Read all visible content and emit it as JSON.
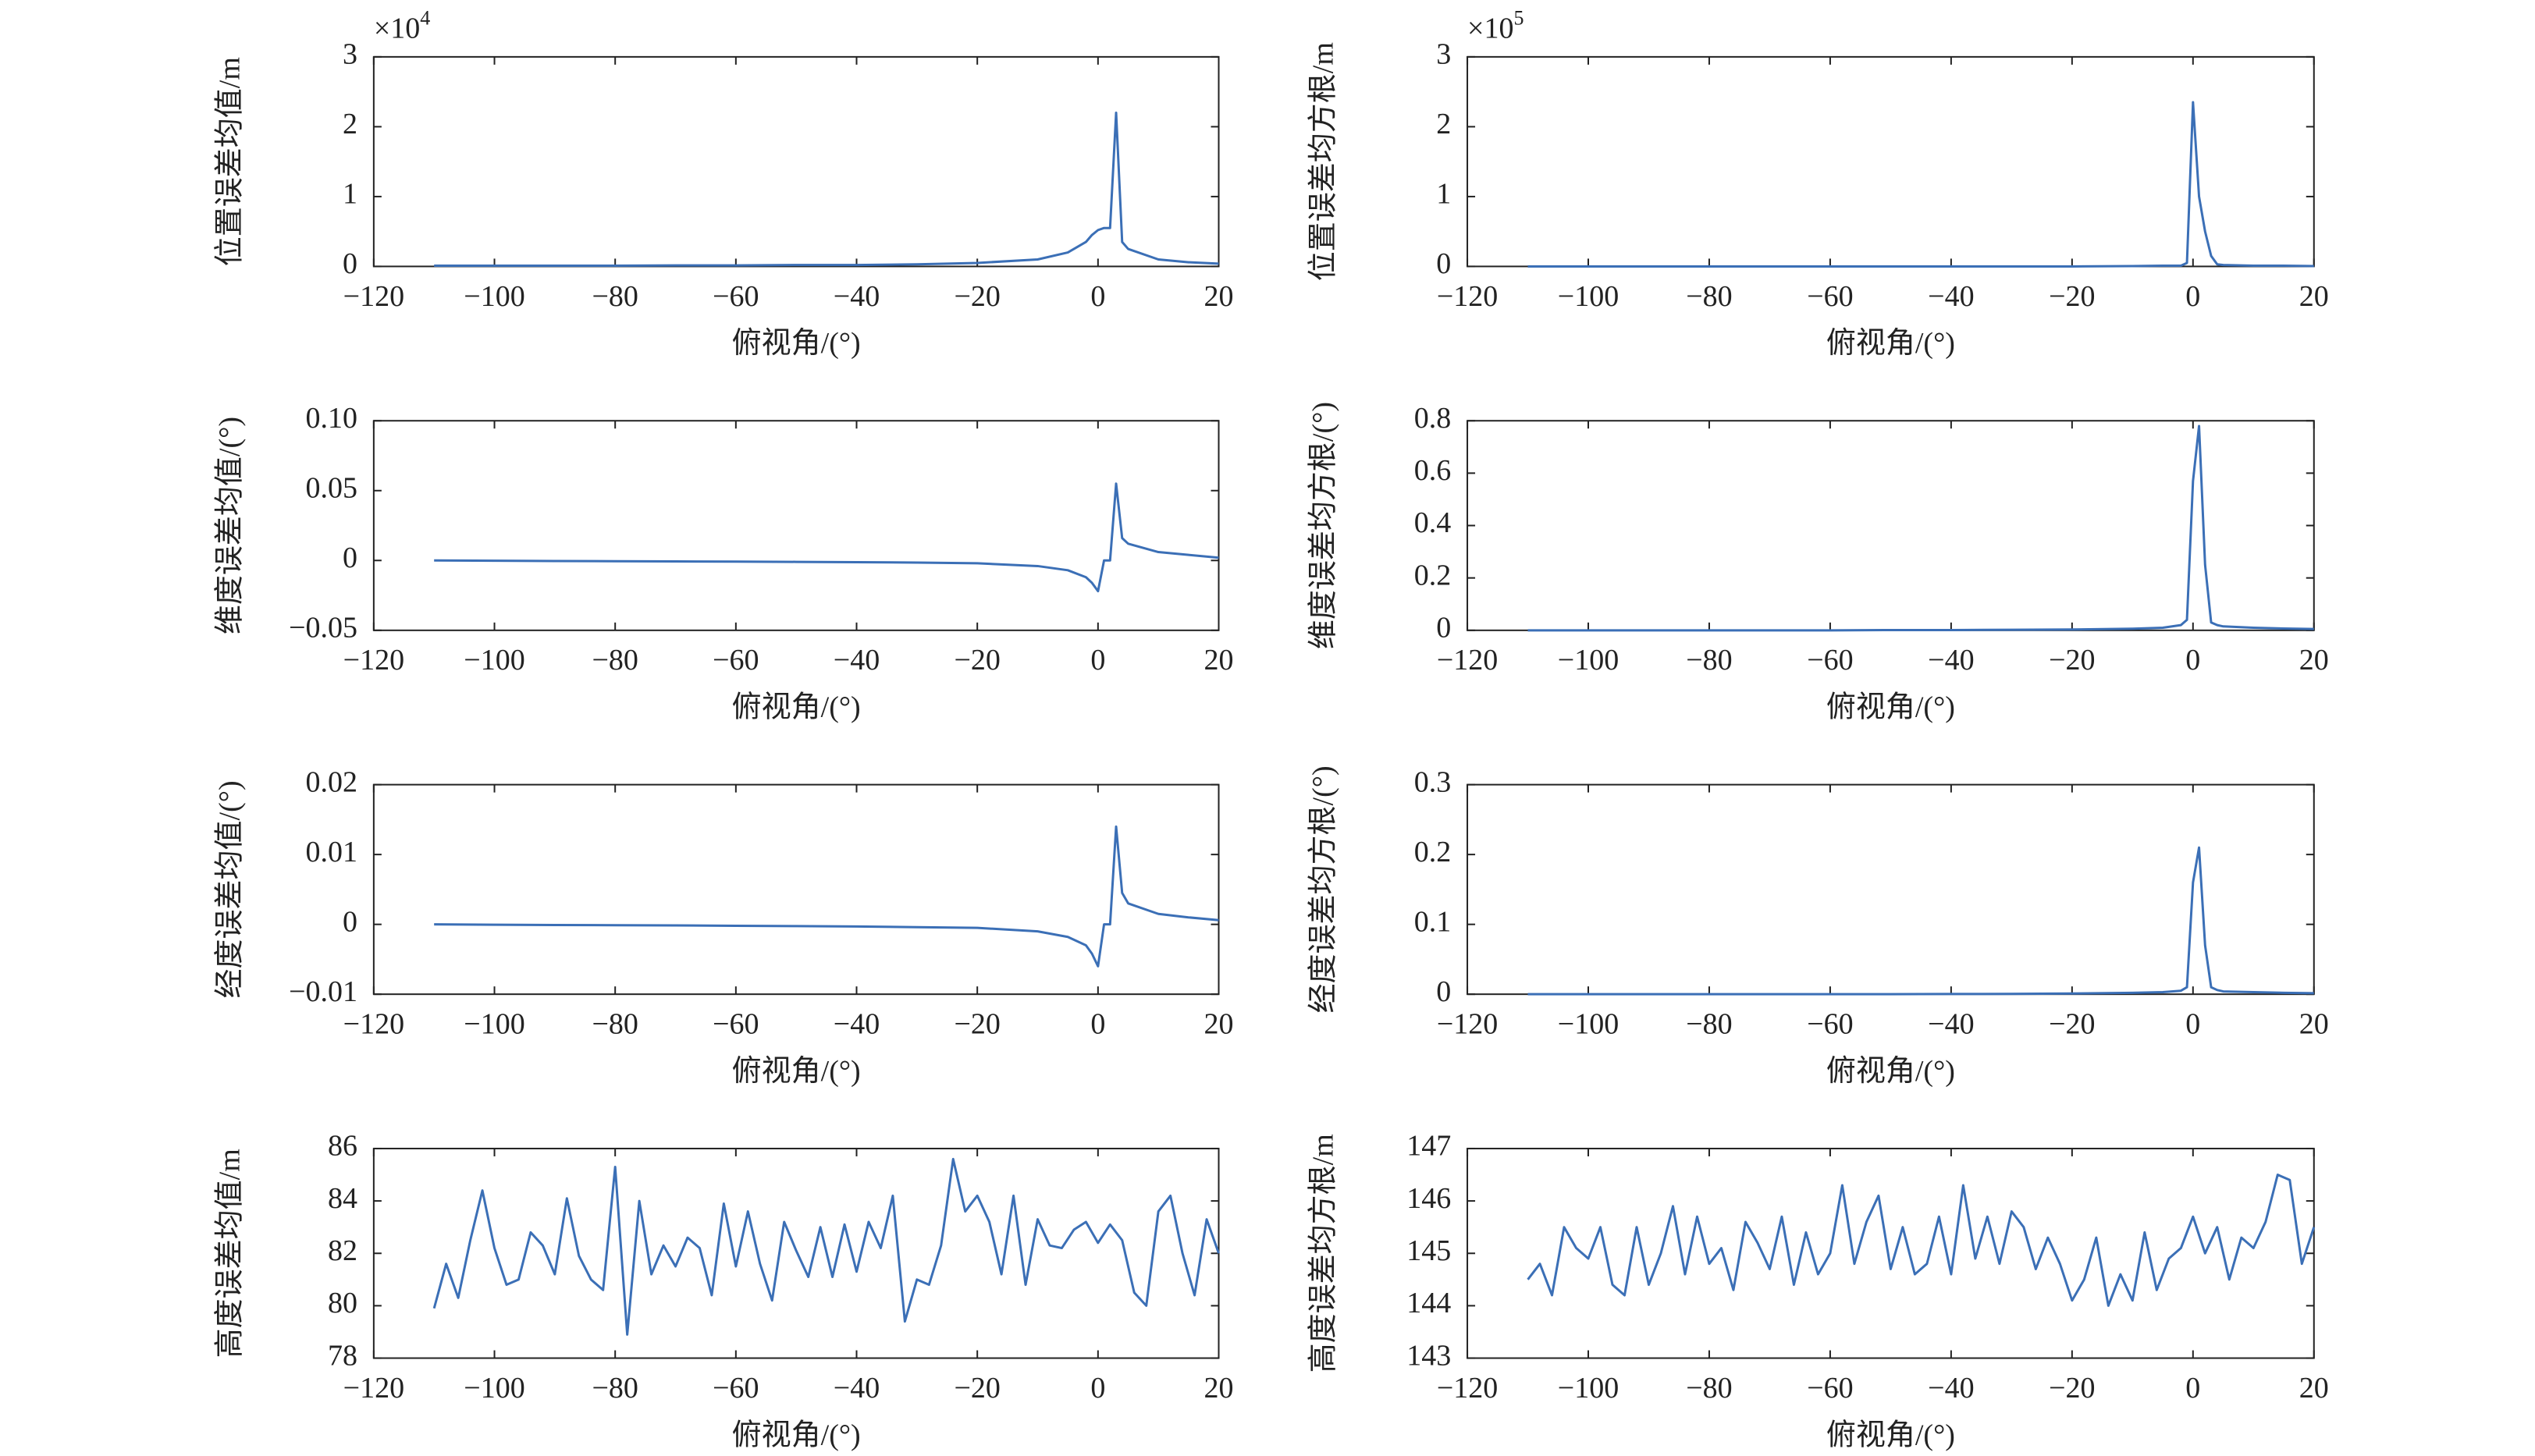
{
  "chart_data": [
    {
      "type": "line",
      "ylabel": "位置误差均值/m",
      "xlabel": "俯视角/(°)",
      "y_scale_label": {
        "base": "×10",
        "exponent": "4"
      },
      "xlim": [
        -120,
        20
      ],
      "xticks": [
        {
          "value": -120,
          "label": "−120"
        },
        {
          "value": -100,
          "label": "−100"
        },
        {
          "value": -80,
          "label": "−80"
        },
        {
          "value": -60,
          "label": "−60"
        },
        {
          "value": -40,
          "label": "−40"
        },
        {
          "value": -20,
          "label": "−20"
        },
        0,
        20
      ],
      "ylim": [
        0,
        3
      ],
      "yticks": [
        0,
        1,
        2,
        3
      ],
      "series": [
        {
          "color": "#3b6fb6",
          "x": [
            -110,
            -100,
            -90,
            -80,
            -70,
            -60,
            -50,
            -40,
            -30,
            -20,
            -10,
            -5,
            -2,
            -1,
            0,
            1,
            2,
            3,
            4,
            5,
            10,
            15,
            20
          ],
          "values": [
            0.01,
            0.01,
            0.01,
            0.01,
            0.015,
            0.015,
            0.02,
            0.02,
            0.03,
            0.05,
            0.1,
            0.2,
            0.35,
            0.45,
            0.52,
            0.55,
            0.55,
            2.2,
            0.35,
            0.25,
            0.1,
            0.06,
            0.04
          ]
        }
      ]
    },
    {
      "type": "line",
      "ylabel": "位置误差均方根/m",
      "xlabel": "俯视角/(°)",
      "y_scale_label": {
        "base": "×10",
        "exponent": "5"
      },
      "xlim": [
        -120,
        20
      ],
      "xticks": [
        {
          "value": -120,
          "label": "−120"
        },
        {
          "value": -100,
          "label": "−100"
        },
        {
          "value": -80,
          "label": "−80"
        },
        {
          "value": -60,
          "label": "−60"
        },
        {
          "value": -40,
          "label": "−40"
        },
        {
          "value": -20,
          "label": "−20"
        },
        0,
        20
      ],
      "ylim": [
        0,
        3
      ],
      "yticks": [
        0,
        1,
        2,
        3
      ],
      "series": [
        {
          "color": "#3b6fb6",
          "x": [
            -110,
            -100,
            -90,
            -80,
            -70,
            -60,
            -50,
            -40,
            -30,
            -20,
            -10,
            -5,
            -2,
            -1,
            0,
            1,
            2,
            3,
            4,
            5,
            10,
            15,
            20
          ],
          "values": [
            0,
            0,
            0,
            0,
            0,
            0,
            0,
            0,
            0,
            0,
            0.005,
            0.01,
            0.01,
            0.05,
            2.35,
            1.0,
            0.5,
            0.15,
            0.03,
            0.02,
            0.01,
            0.01,
            0.005
          ]
        }
      ]
    },
    {
      "type": "line",
      "ylabel": "维度误差均值/(°)",
      "xlabel": "俯视角/(°)",
      "xlim": [
        -120,
        20
      ],
      "xticks": [
        {
          "value": -120,
          "label": "−120"
        },
        {
          "value": -100,
          "label": "−100"
        },
        {
          "value": -80,
          "label": "−80"
        },
        {
          "value": -60,
          "label": "−60"
        },
        {
          "value": -40,
          "label": "−40"
        },
        {
          "value": -20,
          "label": "−20"
        },
        0,
        20
      ],
      "ylim": [
        -0.05,
        0.1
      ],
      "yticks": [
        {
          "value": -0.05,
          "label": "−0.05"
        },
        0,
        0.05,
        {
          "value": 0.1,
          "label": "0.10"
        }
      ],
      "series": [
        {
          "color": "#3b6fb6",
          "x": [
            -110,
            -100,
            -90,
            -80,
            -70,
            -60,
            -50,
            -40,
            -30,
            -20,
            -10,
            -5,
            -2,
            -1,
            0,
            1,
            2,
            3,
            4,
            5,
            10,
            15,
            20
          ],
          "values": [
            0,
            -0.0002,
            -0.0004,
            -0.0005,
            -0.0007,
            -0.0008,
            -0.001,
            -0.0012,
            -0.0015,
            -0.002,
            -0.004,
            -0.007,
            -0.012,
            -0.016,
            -0.022,
            0,
            0,
            0.055,
            0.016,
            0.012,
            0.006,
            0.004,
            0.002
          ]
        }
      ]
    },
    {
      "type": "line",
      "ylabel": "维度误差均方根/(°)",
      "xlabel": "俯视角/(°)",
      "xlim": [
        -120,
        20
      ],
      "xticks": [
        {
          "value": -120,
          "label": "−120"
        },
        {
          "value": -100,
          "label": "−100"
        },
        {
          "value": -80,
          "label": "−80"
        },
        {
          "value": -60,
          "label": "−60"
        },
        {
          "value": -40,
          "label": "−40"
        },
        {
          "value": -20,
          "label": "−20"
        },
        0,
        20
      ],
      "ylim": [
        0,
        0.8
      ],
      "yticks": [
        0,
        0.2,
        0.4,
        0.6,
        0.8
      ],
      "series": [
        {
          "color": "#3b6fb6",
          "x": [
            -110,
            -100,
            -90,
            -80,
            -70,
            -60,
            -50,
            -40,
            -30,
            -20,
            -10,
            -5,
            -2,
            -1,
            0,
            1,
            2,
            3,
            4,
            5,
            10,
            15,
            20
          ],
          "values": [
            0,
            0,
            0,
            0,
            0,
            0,
            0.001,
            0.001,
            0.002,
            0.003,
            0.006,
            0.01,
            0.02,
            0.04,
            0.57,
            0.78,
            0.25,
            0.03,
            0.02,
            0.015,
            0.01,
            0.007,
            0.005
          ]
        }
      ]
    },
    {
      "type": "line",
      "ylabel": "经度误差均值/(°)",
      "xlabel": "俯视角/(°)",
      "xlim": [
        -120,
        20
      ],
      "xticks": [
        {
          "value": -120,
          "label": "−120"
        },
        {
          "value": -100,
          "label": "−100"
        },
        {
          "value": -80,
          "label": "−80"
        },
        {
          "value": -60,
          "label": "−60"
        },
        {
          "value": -40,
          "label": "−40"
        },
        {
          "value": -20,
          "label": "−20"
        },
        0,
        20
      ],
      "ylim": [
        -0.01,
        0.02
      ],
      "yticks": [
        {
          "value": -0.01,
          "label": "−0.01"
        },
        0,
        0.01,
        0.02
      ],
      "series": [
        {
          "color": "#3b6fb6",
          "x": [
            -110,
            -100,
            -90,
            -80,
            -70,
            -60,
            -50,
            -40,
            -30,
            -20,
            -10,
            -5,
            -2,
            -1,
            0,
            1,
            2,
            3,
            4,
            5,
            10,
            15,
            20
          ],
          "values": [
            0,
            -5e-05,
            -0.0001,
            -0.00012,
            -0.00015,
            -0.0002,
            -0.00025,
            -0.0003,
            -0.0004,
            -0.0005,
            -0.001,
            -0.0018,
            -0.003,
            -0.0042,
            -0.006,
            0,
            0,
            0.014,
            0.0045,
            0.003,
            0.0015,
            0.001,
            0.0006
          ]
        }
      ]
    },
    {
      "type": "line",
      "ylabel": "经度误差均方根/(°)",
      "xlabel": "俯视角/(°)",
      "xlim": [
        -120,
        20
      ],
      "xticks": [
        {
          "value": -120,
          "label": "−120"
        },
        {
          "value": -100,
          "label": "−100"
        },
        {
          "value": -80,
          "label": "−80"
        },
        {
          "value": -60,
          "label": "−60"
        },
        {
          "value": -40,
          "label": "−40"
        },
        {
          "value": -20,
          "label": "−20"
        },
        0,
        20
      ],
      "ylim": [
        0,
        0.3
      ],
      "yticks": [
        0,
        0.1,
        0.2,
        0.3
      ],
      "series": [
        {
          "color": "#3b6fb6",
          "x": [
            -110,
            -100,
            -90,
            -80,
            -70,
            -60,
            -50,
            -40,
            -30,
            -20,
            -10,
            -5,
            -2,
            -1,
            0,
            1,
            2,
            3,
            4,
            5,
            10,
            15,
            20
          ],
          "values": [
            0,
            0,
            0,
            0,
            0,
            0,
            0,
            0.0003,
            0.0005,
            0.001,
            0.002,
            0.003,
            0.005,
            0.01,
            0.16,
            0.21,
            0.07,
            0.01,
            0.006,
            0.004,
            0.003,
            0.002,
            0.0015
          ]
        }
      ]
    },
    {
      "type": "line",
      "ylabel": "高度误差均值/m",
      "xlabel": "俯视角/(°)",
      "xlim": [
        -120,
        20
      ],
      "xticks": [
        {
          "value": -120,
          "label": "−120"
        },
        {
          "value": -100,
          "label": "−100"
        },
        {
          "value": -80,
          "label": "−80"
        },
        {
          "value": -60,
          "label": "−60"
        },
        {
          "value": -40,
          "label": "−40"
        },
        {
          "value": -20,
          "label": "−20"
        },
        0,
        20
      ],
      "ylim": [
        78,
        86
      ],
      "yticks": [
        78,
        80,
        82,
        84,
        86
      ],
      "series": [
        {
          "color": "#3b6fb6",
          "x": [
            -110,
            -108,
            -106,
            -104,
            -102,
            -100,
            -98,
            -96,
            -94,
            -92,
            -90,
            -88,
            -86,
            -84,
            -82,
            -80,
            -78,
            -76,
            -74,
            -72,
            -70,
            -68,
            -66,
            -64,
            -62,
            -60,
            -58,
            -56,
            -54,
            -52,
            -50,
            -48,
            -46,
            -44,
            -42,
            -40,
            -38,
            -36,
            -34,
            -32,
            -30,
            -28,
            -26,
            -24,
            -22,
            -20,
            -18,
            -16,
            -14,
            -12,
            -10,
            -8,
            -6,
            -4,
            -2,
            0,
            2,
            4,
            6,
            8,
            10,
            12,
            14,
            16,
            18,
            20
          ],
          "values": [
            79.9,
            81.6,
            80.3,
            82.5,
            84.4,
            82.2,
            80.8,
            81.0,
            82.8,
            82.3,
            81.2,
            84.1,
            81.9,
            81.0,
            80.6,
            85.3,
            78.9,
            84.0,
            81.2,
            82.3,
            81.5,
            82.6,
            82.2,
            80.4,
            83.9,
            81.5,
            83.6,
            81.6,
            80.2,
            83.2,
            82.1,
            81.1,
            83.0,
            81.1,
            83.1,
            81.3,
            83.2,
            82.2,
            84.2,
            79.4,
            81.0,
            80.8,
            82.3,
            85.6,
            83.6,
            84.2,
            83.2,
            81.2,
            84.2,
            80.8,
            83.3,
            82.3,
            82.2,
            82.9,
            83.2,
            82.4,
            83.1,
            82.5,
            80.5,
            80.0,
            83.6,
            84.2,
            82.0,
            80.4,
            83.3,
            82.0
          ]
        }
      ]
    },
    {
      "type": "line",
      "ylabel": "高度误差均方根/m",
      "xlabel": "俯视角/(°)",
      "xlim": [
        -120,
        20
      ],
      "xticks": [
        {
          "value": -120,
          "label": "−120"
        },
        {
          "value": -100,
          "label": "−100"
        },
        {
          "value": -80,
          "label": "−80"
        },
        {
          "value": -60,
          "label": "−60"
        },
        {
          "value": -40,
          "label": "−40"
        },
        {
          "value": -20,
          "label": "−20"
        },
        0,
        20
      ],
      "ylim": [
        143,
        147
      ],
      "yticks": [
        143,
        144,
        145,
        146,
        147
      ],
      "series": [
        {
          "color": "#3b6fb6",
          "x": [
            -110,
            -108,
            -106,
            -104,
            -102,
            -100,
            -98,
            -96,
            -94,
            -92,
            -90,
            -88,
            -86,
            -84,
            -82,
            -80,
            -78,
            -76,
            -74,
            -72,
            -70,
            -68,
            -66,
            -64,
            -62,
            -60,
            -58,
            -56,
            -54,
            -52,
            -50,
            -48,
            -46,
            -44,
            -42,
            -40,
            -38,
            -36,
            -34,
            -32,
            -30,
            -28,
            -26,
            -24,
            -22,
            -20,
            -18,
            -16,
            -14,
            -12,
            -10,
            -8,
            -6,
            -4,
            -2,
            0,
            2,
            4,
            6,
            8,
            10,
            12,
            14,
            16,
            18,
            20
          ],
          "values": [
            144.5,
            144.8,
            144.2,
            145.5,
            145.1,
            144.9,
            145.5,
            144.4,
            144.2,
            145.5,
            144.4,
            145.0,
            145.9,
            144.6,
            145.7,
            144.8,
            145.1,
            144.3,
            145.6,
            145.2,
            144.7,
            145.7,
            144.4,
            145.4,
            144.6,
            145.0,
            146.3,
            144.8,
            145.6,
            146.1,
            144.7,
            145.5,
            144.6,
            144.8,
            145.7,
            144.6,
            146.3,
            144.9,
            145.7,
            144.8,
            145.8,
            145.5,
            144.7,
            145.3,
            144.8,
            144.1,
            144.5,
            145.3,
            144.0,
            144.6,
            144.1,
            145.4,
            144.3,
            144.9,
            145.1,
            145.7,
            145.0,
            145.5,
            144.5,
            145.3,
            145.1,
            145.6,
            146.5,
            146.4,
            144.8,
            145.5
          ]
        }
      ]
    }
  ]
}
